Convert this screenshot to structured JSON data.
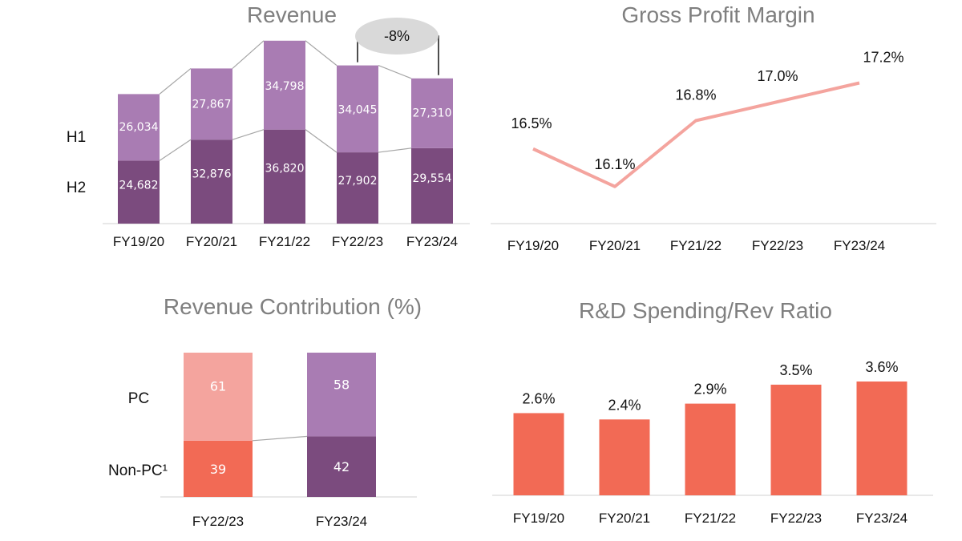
{
  "colors": {
    "h1": "#a97cb3",
    "h2": "#7b4b7e",
    "pc_fy2223": "#f4a49e",
    "nonpc_fy2223": "#f26a55",
    "pc_fy2324": "#a97cb3",
    "nonpc_fy2324": "#7b4b7e",
    "margin_line": "#f4a49e",
    "rd_bar": "#f26a55",
    "pill": "#d9d9d9"
  },
  "chart_data": [
    {
      "type": "bar",
      "stacked": true,
      "title": "Revenue",
      "categories": [
        "FY19/20",
        "FY20/21",
        "FY21/22",
        "FY22/23",
        "FY23/24"
      ],
      "row_labels": [
        "H1",
        "H2"
      ],
      "series": [
        {
          "name": "H2",
          "values": [
            24682,
            32876,
            36820,
            27902,
            29554
          ],
          "labels": [
            "24,682",
            "32,876",
            "36,820",
            "27,902",
            "29,554"
          ]
        },
        {
          "name": "H1",
          "values": [
            26034,
            27867,
            34798,
            34045,
            27310
          ],
          "labels": [
            "26,034",
            "27,867",
            "34,798",
            "34,045",
            "27,310"
          ]
        }
      ],
      "annotation": {
        "text": "-8%",
        "from": "FY22/23",
        "to": "FY23/24"
      },
      "ylim": [
        0,
        75000
      ]
    },
    {
      "type": "line",
      "title": "Gross Profit Margin",
      "categories": [
        "FY19/20",
        "FY20/21",
        "FY21/22",
        "FY22/23",
        "FY23/24"
      ],
      "values": [
        16.5,
        16.1,
        16.8,
        17.0,
        17.2
      ],
      "labels": [
        "16.5%",
        "16.1%",
        "16.8%",
        "17.0%",
        "17.2%"
      ],
      "ylim": [
        15.8,
        17.4
      ]
    },
    {
      "type": "bar",
      "stacked": true,
      "title": "Revenue Contribution (%)",
      "categories": [
        "FY22/23",
        "FY23/24"
      ],
      "row_labels": [
        "PC",
        "Non-PC¹"
      ],
      "series": [
        {
          "name": "Non-PC",
          "values": [
            39,
            42
          ],
          "labels": [
            "39",
            "42"
          ]
        },
        {
          "name": "PC",
          "values": [
            61,
            58
          ],
          "labels": [
            "61",
            "58"
          ]
        }
      ],
      "ylim": [
        0,
        100
      ]
    },
    {
      "type": "bar",
      "title": "R&D Spending/Rev Ratio",
      "categories": [
        "FY19/20",
        "FY20/21",
        "FY21/22",
        "FY22/23",
        "FY23/24"
      ],
      "values": [
        2.6,
        2.4,
        2.9,
        3.5,
        3.6
      ],
      "labels": [
        "2.6%",
        "2.4%",
        "2.9%",
        "3.5%",
        "3.6%"
      ],
      "ylim": [
        0,
        3.6
      ]
    }
  ]
}
